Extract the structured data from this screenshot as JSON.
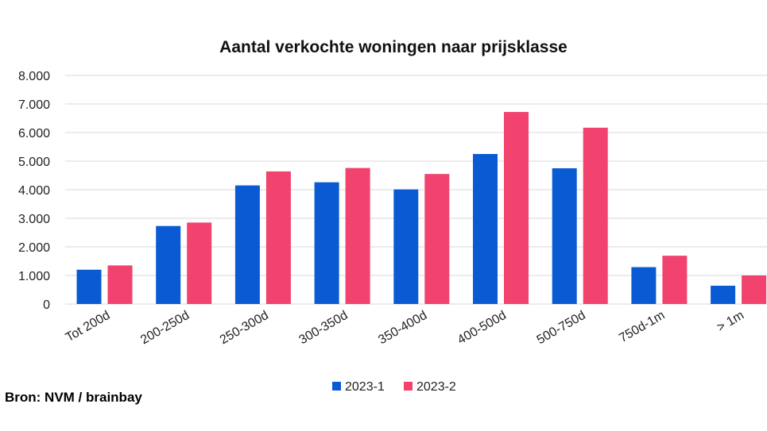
{
  "chart_data": {
    "type": "bar",
    "title": "Aantal verkochte woningen naar prijsklasse",
    "categories": [
      "Tot 200d",
      "200-250d",
      "250-300d",
      "300-350d",
      "350-400d",
      "400-500d",
      "500-750d",
      "750d-1m",
      "> 1m"
    ],
    "series": [
      {
        "name": "2023-1",
        "color": "#0a5bd3",
        "values": [
          1200,
          2730,
          4150,
          4260,
          4010,
          5250,
          4750,
          1290,
          640
        ]
      },
      {
        "name": "2023-2",
        "color": "#f2426e",
        "values": [
          1350,
          2850,
          4640,
          4760,
          4550,
          6720,
          6170,
          1690,
          1000
        ]
      }
    ],
    "ylim": [
      0,
      8000
    ],
    "yticks": [
      0,
      1000,
      2000,
      3000,
      4000,
      5000,
      6000,
      7000,
      8000
    ],
    "ytick_labels": [
      "0",
      "1.000",
      "2.000",
      "3.000",
      "4.000",
      "5.000",
      "6.000",
      "7.000",
      "8.000"
    ],
    "grid": true,
    "legend_position": "bottom-center"
  },
  "source": "Bron: NVM / brainbay"
}
